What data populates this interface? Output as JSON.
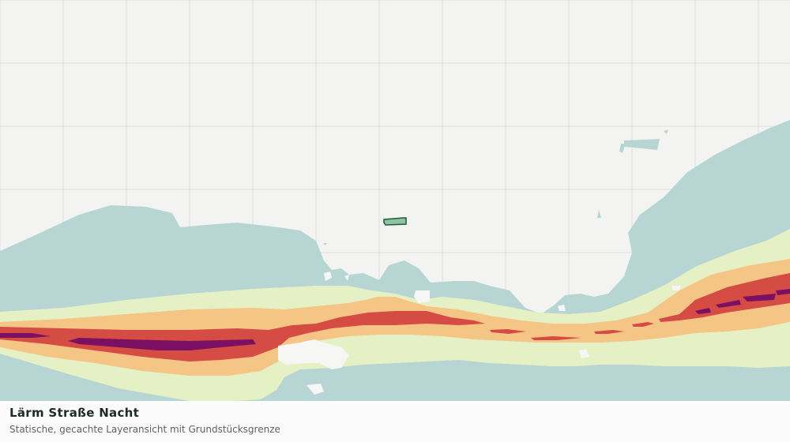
{
  "map": {
    "title": "Lärm Straße Nacht",
    "subtitle": "Statische, gecachte Layeransicht mit Grundstücksgrenze",
    "layers": [
      {
        "name": "noise-band-lowest",
        "color": "#b7d6d3"
      },
      {
        "name": "noise-band-low",
        "color": "#e5f1c5"
      },
      {
        "name": "noise-band-mid",
        "color": "#f4c585"
      },
      {
        "name": "noise-band-high",
        "color": "#d54c44"
      },
      {
        "name": "noise-band-highest",
        "color": "#7b0f61"
      }
    ],
    "parcel": {
      "fill": "#8fc4a0",
      "stroke": "#1d5a3c"
    },
    "background_color": "#f3f4f2",
    "grid_color": "#dddfdd"
  }
}
